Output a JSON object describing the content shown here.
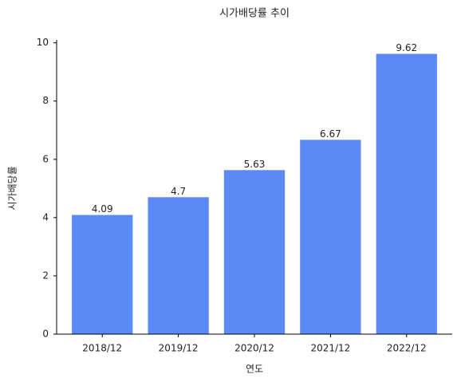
{
  "chart_data": {
    "type": "bar",
    "title": "시가배당률 추이",
    "x_label": "연도",
    "y_label": "시가배당률",
    "categories": [
      "2018/12",
      "2019/12",
      "2020/12",
      "2021/12",
      "2022/12"
    ],
    "values": [
      4.09,
      4.7,
      5.63,
      6.67,
      9.62
    ],
    "color": "#5b89f6",
    "ylim": [
      0,
      10.1
    ],
    "yticks": [
      0,
      2,
      4,
      6,
      8,
      10
    ],
    "grid": false
  }
}
